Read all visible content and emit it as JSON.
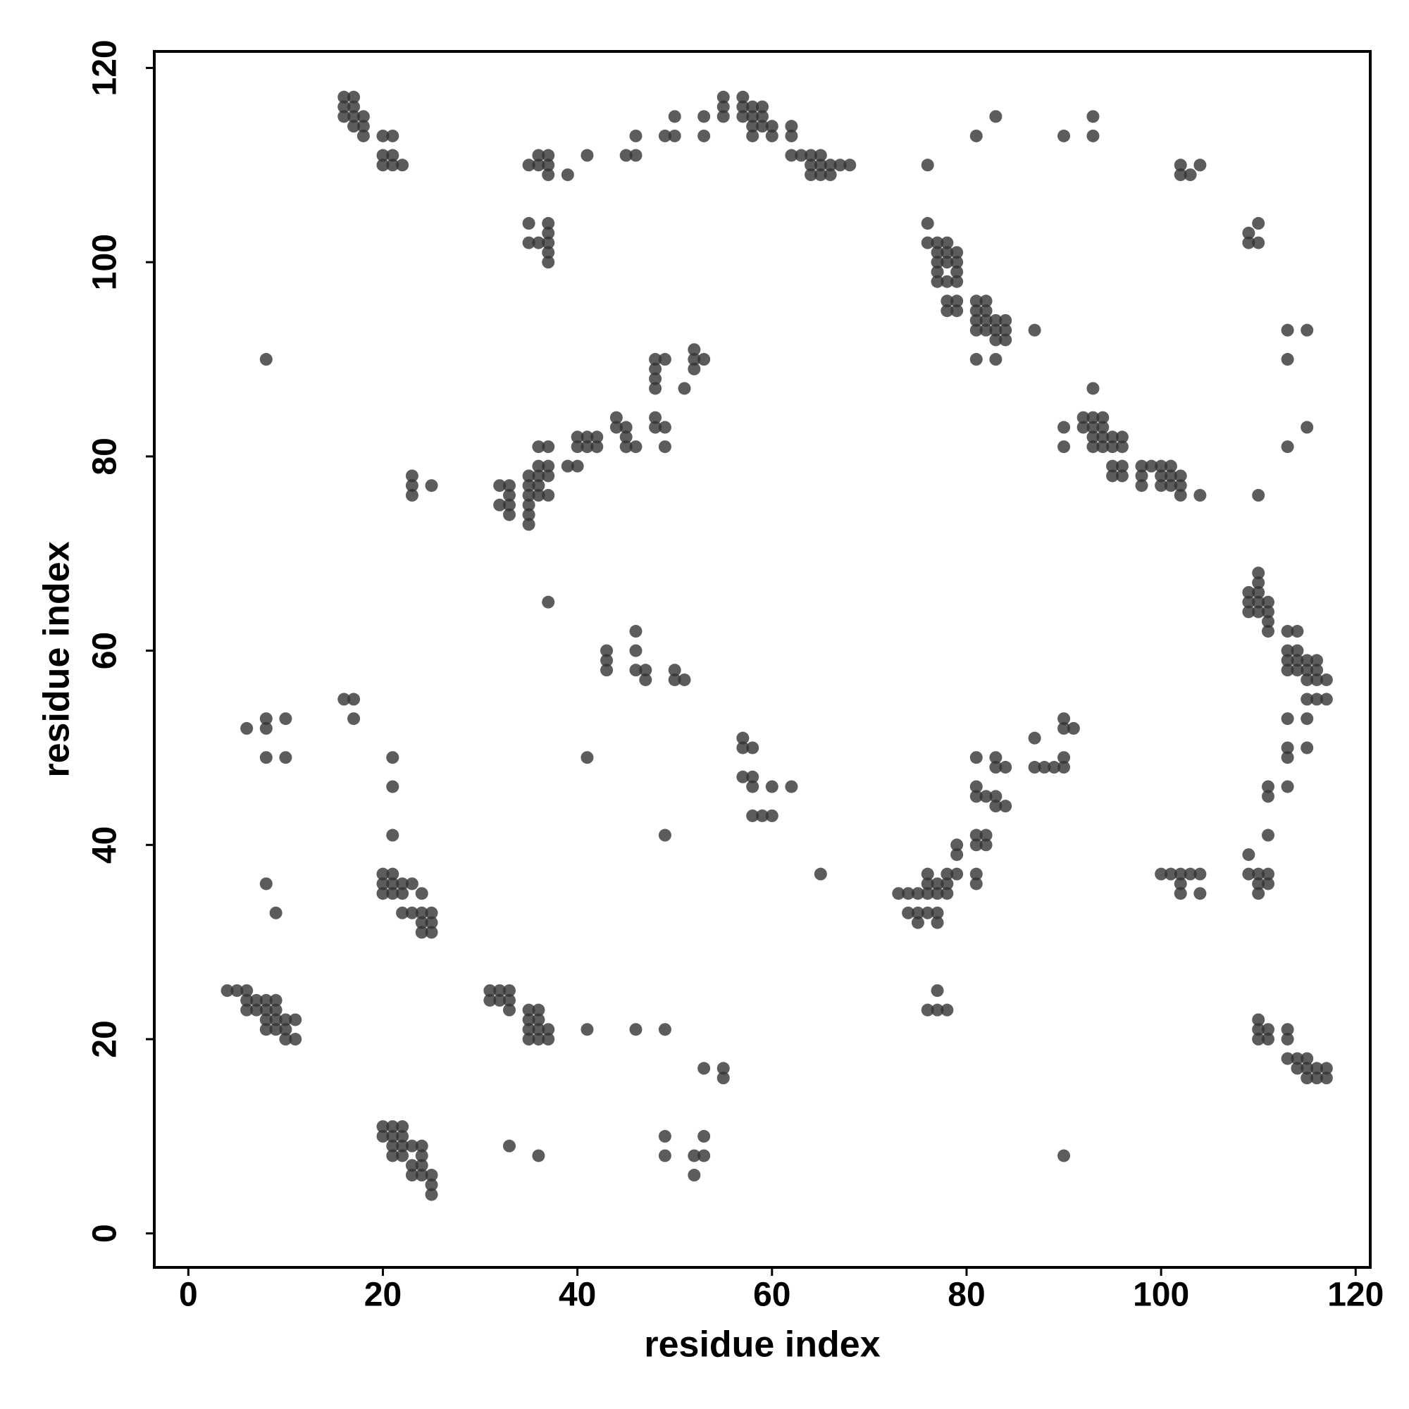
{
  "chart_data": {
    "type": "scatter",
    "xlabel": "residue index",
    "ylabel": "residue index",
    "xlim": [
      -3.5,
      121.5
    ],
    "ylim": [
      -3.5,
      121.7
    ],
    "xticks": [
      0,
      20,
      40,
      60,
      80,
      100,
      120
    ],
    "yticks": [
      0,
      20,
      40,
      60,
      80,
      100,
      120
    ],
    "series": [
      {
        "color": "#333333",
        "x": [
          16,
          17,
          16,
          17,
          16,
          17,
          18,
          17,
          18,
          18,
          20,
          21,
          20,
          21,
          20,
          21,
          22,
          35,
          36,
          37,
          36,
          37,
          37,
          39,
          41,
          45,
          46,
          46,
          49,
          50,
          50,
          53,
          53,
          55,
          55,
          55,
          57,
          57,
          58,
          59,
          57,
          58,
          59,
          58,
          59,
          60,
          58,
          60,
          62,
          62,
          62,
          63,
          64,
          65,
          64,
          65,
          66,
          67,
          68,
          64,
          65,
          66,
          76,
          81,
          83,
          90,
          93,
          93,
          102,
          102,
          103,
          104,
          35,
          35,
          36,
          37,
          37,
          37,
          37,
          37,
          76,
          76,
          77,
          78,
          77,
          78,
          79,
          77,
          78,
          79,
          77,
          79,
          77,
          78,
          79,
          78,
          79,
          78,
          79,
          81,
          82,
          81,
          82,
          81,
          82,
          83,
          84,
          81,
          82,
          83,
          84,
          83,
          84,
          87,
          81,
          83,
          109,
          110,
          109,
          110,
          113,
          115,
          113,
          8,
          48,
          49,
          48,
          48,
          48,
          52,
          52,
          53,
          52,
          51,
          93,
          90,
          92,
          93,
          94,
          92,
          93,
          94,
          93,
          94,
          95,
          96,
          93,
          94,
          95,
          96,
          90,
          95,
          96,
          95,
          96,
          98,
          99,
          100,
          101,
          98,
          100,
          101,
          102,
          98,
          100,
          101,
          102,
          102,
          104,
          113,
          115,
          110,
          44,
          44,
          45,
          45,
          45,
          46,
          48,
          48,
          49,
          49,
          40,
          41,
          42,
          40,
          41,
          42,
          39,
          40,
          36,
          37,
          36,
          37,
          35,
          36,
          37,
          35,
          36,
          35,
          36,
          37,
          35,
          35,
          35,
          32,
          33,
          33,
          32,
          33,
          33,
          23,
          23,
          23,
          25,
          37,
          109,
          110,
          110,
          110,
          109,
          110,
          111,
          109,
          110,
          111,
          111,
          111,
          113,
          114,
          113,
          114,
          113,
          114,
          115,
          116,
          113,
          114,
          115,
          116,
          115,
          116,
          117,
          115,
          116,
          117,
          43,
          43,
          43,
          46,
          46,
          46,
          47,
          47,
          50,
          50,
          51,
          16,
          17,
          17,
          6,
          8,
          10,
          8,
          8,
          10,
          21,
          21,
          21,
          41,
          49,
          57,
          57,
          58,
          57,
          58,
          58,
          60,
          62,
          58,
          59,
          60,
          65,
          87,
          90,
          90,
          91,
          87,
          88,
          89,
          90,
          90,
          81,
          83,
          83,
          84,
          81,
          81,
          82,
          83,
          83,
          84,
          81,
          82,
          81,
          82,
          79,
          79,
          81,
          81,
          113,
          115,
          113,
          115,
          113,
          111,
          113,
          111,
          111,
          109,
          109,
          110,
          111,
          110,
          111,
          110,
          100,
          101,
          102,
          103,
          104,
          102,
          102,
          104,
          76,
          77,
          78,
          79,
          76,
          78,
          73,
          74,
          75,
          76,
          77,
          78,
          74,
          75,
          76,
          77,
          75,
          77,
          8,
          9,
          20,
          21,
          20,
          21,
          22,
          23,
          20,
          21,
          22,
          24,
          22,
          23,
          24,
          25,
          24,
          25,
          24,
          25,
          4,
          5,
          6,
          6,
          7,
          8,
          9,
          6,
          7,
          8,
          9,
          8,
          9,
          10,
          11,
          8,
          9,
          10,
          10,
          11,
          31,
          32,
          33,
          31,
          32,
          33,
          33,
          35,
          36,
          35,
          36,
          35,
          36,
          37,
          35,
          36,
          37,
          41,
          46,
          49,
          77,
          76,
          77,
          78,
          110,
          110,
          111,
          110,
          111,
          113,
          113,
          113,
          114,
          115,
          114,
          115,
          116,
          117,
          115,
          116,
          117,
          53,
          55,
          55,
          20,
          21,
          22,
          20,
          21,
          22,
          21,
          22,
          23,
          24,
          21,
          22,
          24,
          23,
          24,
          23,
          24,
          25,
          25,
          25,
          33,
          36,
          49,
          49,
          52,
          53,
          53,
          52,
          90
        ],
        "y": [
          117,
          117,
          116,
          116,
          115,
          115,
          115,
          114,
          114,
          113,
          113,
          113,
          111,
          111,
          110,
          110,
          110,
          110,
          111,
          111,
          110,
          110,
          109,
          109,
          111,
          111,
          111,
          113,
          113,
          113,
          115,
          115,
          113,
          115,
          116,
          117,
          117,
          116,
          116,
          116,
          115,
          115,
          115,
          114,
          114,
          114,
          113,
          113,
          114,
          113,
          111,
          111,
          111,
          111,
          110,
          110,
          110,
          110,
          110,
          109,
          109,
          109,
          110,
          113,
          115,
          113,
          115,
          113,
          110,
          109,
          109,
          110,
          104,
          102,
          102,
          104,
          103,
          102,
          101,
          100,
          104,
          102,
          102,
          102,
          101,
          101,
          101,
          100,
          100,
          100,
          99,
          99,
          98,
          98,
          98,
          96,
          96,
          95,
          95,
          96,
          96,
          95,
          95,
          94,
          94,
          94,
          94,
          93,
          93,
          93,
          93,
          92,
          92,
          93,
          90,
          90,
          103,
          104,
          102,
          102,
          93,
          93,
          90,
          90,
          90,
          90,
          89,
          88,
          87,
          91,
          90,
          90,
          89,
          87,
          87,
          83,
          84,
          84,
          84,
          83,
          83,
          83,
          82,
          82,
          82,
          82,
          81,
          81,
          81,
          81,
          81,
          79,
          79,
          78,
          78,
          79,
          79,
          79,
          79,
          78,
          78,
          78,
          78,
          77,
          77,
          77,
          77,
          76,
          76,
          81,
          83,
          76,
          84,
          83,
          83,
          82,
          81,
          81,
          84,
          83,
          83,
          81,
          82,
          82,
          82,
          81,
          81,
          81,
          79,
          79,
          81,
          81,
          79,
          79,
          78,
          78,
          78,
          77,
          77,
          76,
          76,
          76,
          75,
          74,
          73,
          77,
          77,
          76,
          75,
          75,
          74,
          78,
          77,
          76,
          77,
          65,
          66,
          66,
          68,
          67,
          65,
          65,
          65,
          64,
          64,
          64,
          63,
          62,
          62,
          62,
          60,
          60,
          59,
          59,
          59,
          59,
          58,
          58,
          58,
          58,
          57,
          57,
          57,
          55,
          55,
          55,
          60,
          59,
          58,
          62,
          60,
          58,
          58,
          57,
          58,
          57,
          57,
          55,
          55,
          53,
          52,
          53,
          53,
          52,
          49,
          49,
          49,
          46,
          41,
          49,
          41,
          51,
          50,
          50,
          47,
          47,
          46,
          46,
          46,
          43,
          43,
          43,
          37,
          51,
          53,
          52,
          52,
          48,
          48,
          48,
          48,
          49,
          49,
          49,
          48,
          48,
          46,
          45,
          45,
          45,
          44,
          44,
          41,
          41,
          40,
          40,
          40,
          39,
          37,
          36,
          53,
          53,
          50,
          50,
          49,
          46,
          46,
          45,
          41,
          39,
          37,
          37,
          37,
          36,
          36,
          35,
          37,
          37,
          37,
          37,
          37,
          36,
          35,
          35,
          37,
          36,
          37,
          37,
          36,
          36,
          35,
          35,
          35,
          35,
          35,
          35,
          33,
          33,
          33,
          33,
          32,
          32,
          36,
          33,
          37,
          37,
          36,
          36,
          36,
          36,
          35,
          35,
          35,
          35,
          33,
          33,
          33,
          33,
          32,
          32,
          31,
          31,
          25,
          25,
          25,
          24,
          24,
          24,
          24,
          23,
          23,
          23,
          23,
          22,
          22,
          22,
          22,
          21,
          21,
          21,
          20,
          20,
          25,
          25,
          25,
          24,
          24,
          24,
          23,
          23,
          23,
          22,
          22,
          21,
          21,
          21,
          20,
          20,
          20,
          21,
          21,
          21,
          25,
          23,
          23,
          23,
          22,
          21,
          21,
          20,
          20,
          21,
          20,
          18,
          18,
          18,
          17,
          17,
          17,
          17,
          16,
          16,
          16,
          17,
          17,
          16,
          11,
          11,
          11,
          10,
          10,
          10,
          9,
          9,
          9,
          9,
          8,
          8,
          8,
          7,
          7,
          6,
          6,
          6,
          5,
          4,
          9,
          8,
          10,
          8,
          8,
          8,
          10,
          6,
          8
        ]
      }
    ]
  }
}
